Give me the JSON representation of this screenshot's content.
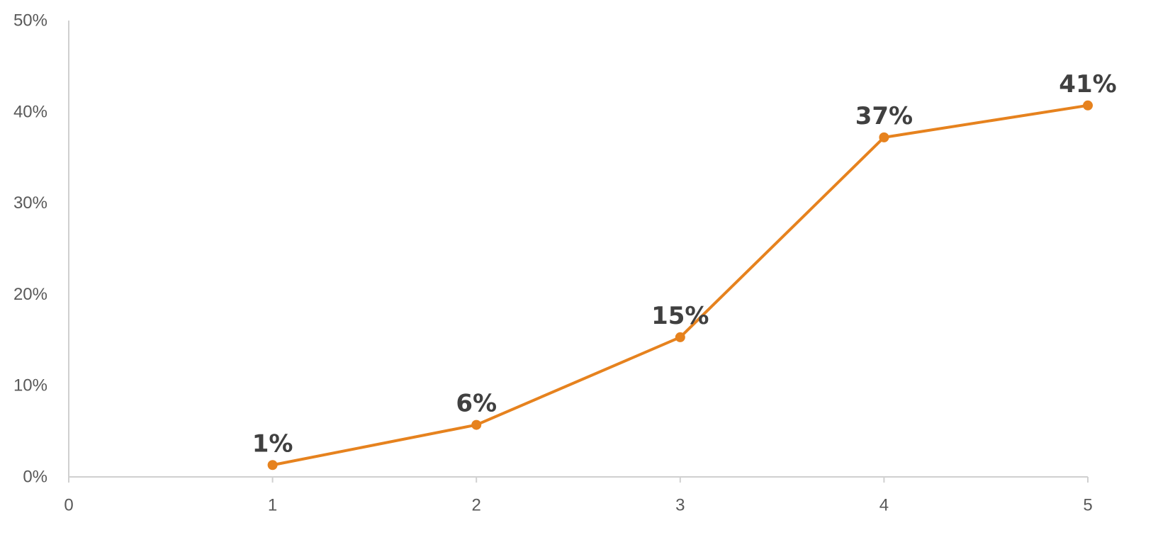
{
  "chart_data": {
    "type": "line",
    "title": "",
    "xlabel": "",
    "ylabel": "",
    "x": [
      1,
      2,
      3,
      4,
      5
    ],
    "series": [
      {
        "values": [
          1.3,
          5.7,
          15.3,
          37.2,
          40.7
        ],
        "color": "#E6821E"
      }
    ],
    "data_labels": [
      "1%",
      "6%",
      "15%",
      "37%",
      "41%"
    ],
    "xlim": [
      0,
      5
    ],
    "ylim": [
      0,
      50
    ],
    "x_ticks": [
      "0",
      "1",
      "2",
      "3",
      "4",
      "5"
    ],
    "y_ticks": [
      "0%",
      "10%",
      "20%",
      "30%",
      "40%",
      "50%"
    ],
    "grid": false,
    "legend": "none"
  }
}
